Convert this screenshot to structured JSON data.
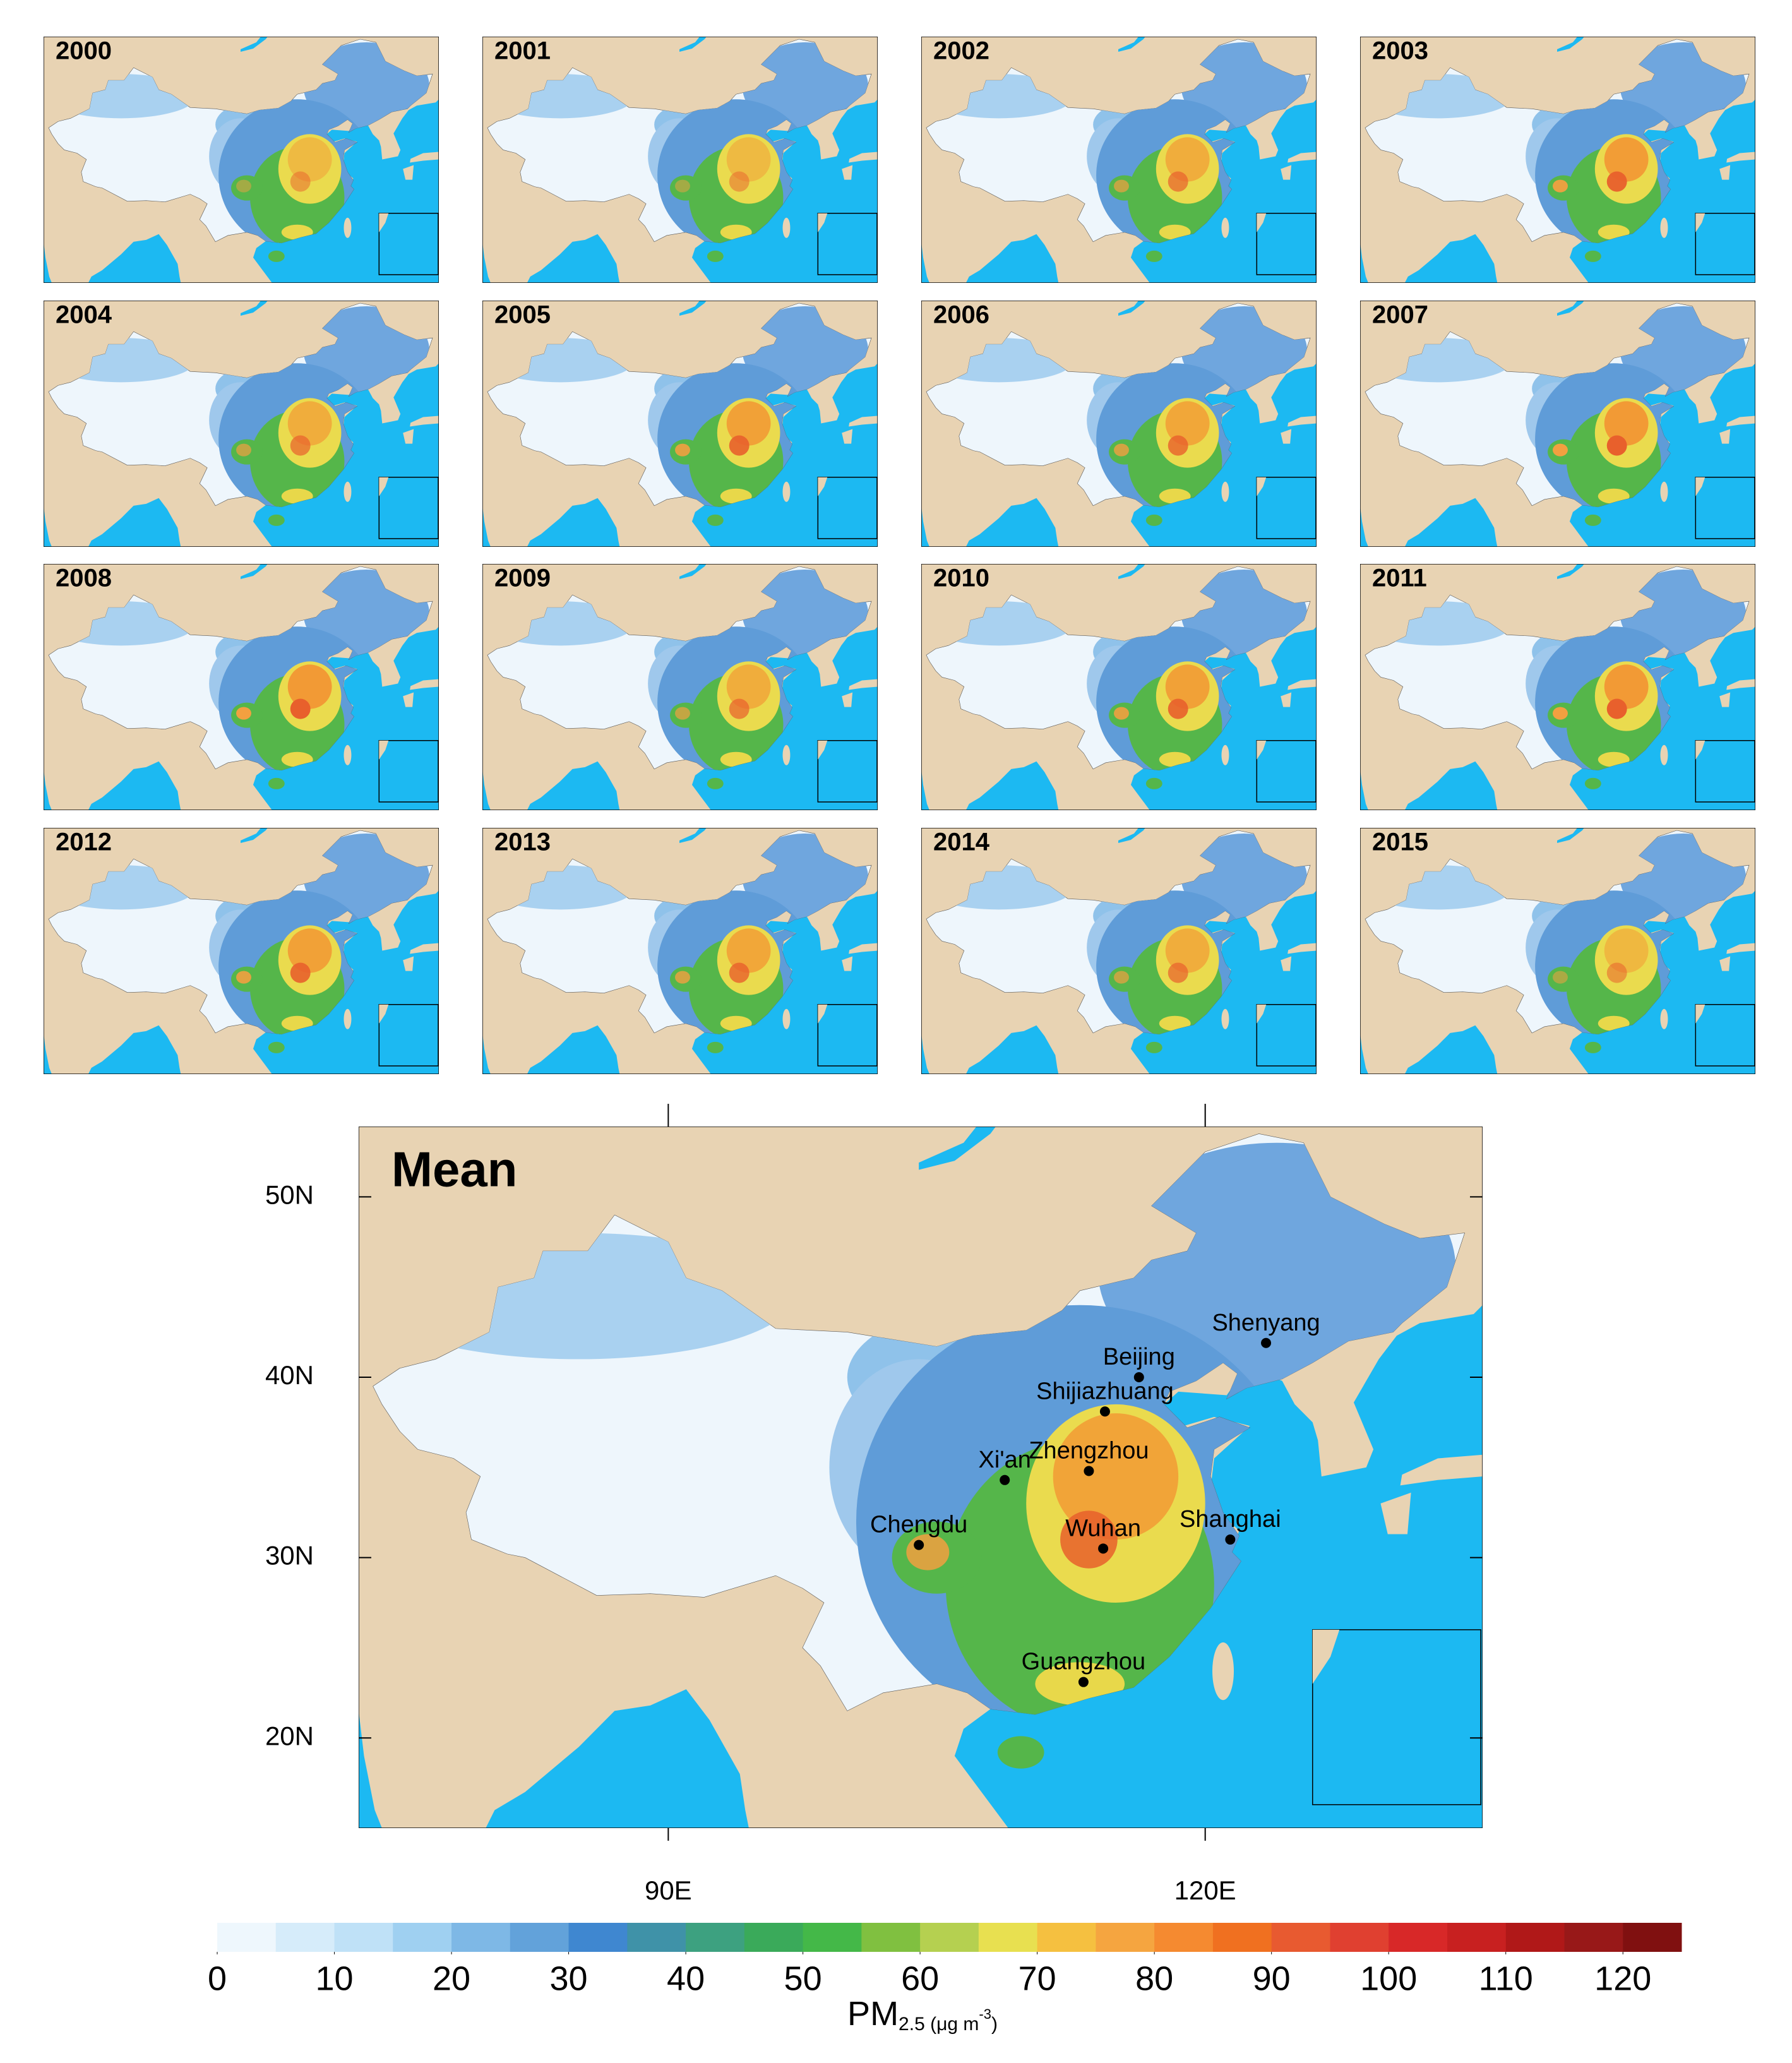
{
  "panels": [
    "2000",
    "2001",
    "2002",
    "2003",
    "2004",
    "2005",
    "2006",
    "2007",
    "2008",
    "2009",
    "2010",
    "2011",
    "2012",
    "2013",
    "2014",
    "2015"
  ],
  "mean_map": {
    "title": "Mean",
    "lon_lim": [
      72.7,
      135.5
    ],
    "lat_lim": [
      15,
      53.9
    ],
    "lat_ticks": [
      {
        "value": 50,
        "label": "50N"
      },
      {
        "value": 40,
        "label": "40N"
      },
      {
        "value": 30,
        "label": "30N"
      },
      {
        "value": 20,
        "label": "20N"
      }
    ],
    "lon_ticks": [
      {
        "value": 90,
        "label": "90E"
      },
      {
        "value": 120,
        "label": "120E"
      }
    ],
    "cities": [
      {
        "name": "Shenyang",
        "lon": 123.4,
        "lat": 41.9
      },
      {
        "name": "Beijing",
        "lon": 116.3,
        "lat": 40.0
      },
      {
        "name": "Shijiazhuang",
        "lon": 114.4,
        "lat": 38.1
      },
      {
        "name": "Zhengzhou",
        "lon": 113.5,
        "lat": 34.8
      },
      {
        "name": "Xi'an",
        "lon": 108.8,
        "lat": 34.3
      },
      {
        "name": "Chengdu",
        "lon": 104.0,
        "lat": 30.7
      },
      {
        "name": "Wuhan",
        "lon": 114.3,
        "lat": 30.5
      },
      {
        "name": "Shanghai",
        "lon": 121.4,
        "lat": 31.0
      },
      {
        "name": "Guangzhou",
        "lon": 113.2,
        "lat": 23.1
      }
    ]
  },
  "colorbar": {
    "lim": [
      0,
      125
    ],
    "ticks": [
      0,
      10,
      20,
      30,
      40,
      50,
      60,
      70,
      80,
      90,
      100,
      110,
      120
    ],
    "colors": [
      "#eef7fd",
      "#d6ecfa",
      "#bfe1f7",
      "#9fd0f1",
      "#7eb8e6",
      "#62a2da",
      "#3f87d0",
      "#3f92a8",
      "#3da180",
      "#3aaa5a",
      "#44b848",
      "#80c040",
      "#b5d050",
      "#e8e050",
      "#f5c040",
      "#f5a540",
      "#f58a30",
      "#f07020",
      "#e85a30",
      "#e04030",
      "#d82828",
      "#c82020",
      "#b01818",
      "#981818",
      "#801010"
    ],
    "label": {
      "main": "PM",
      "sub": "2.5 (μg m",
      "sup": "-3",
      "end": ")"
    }
  }
}
